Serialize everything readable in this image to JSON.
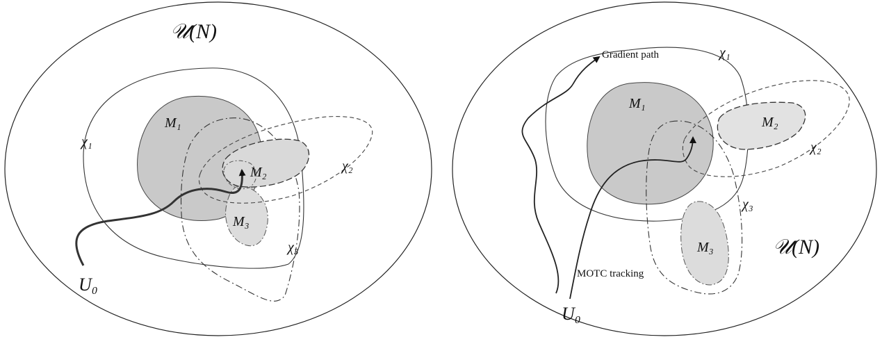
{
  "left_panel": {
    "space_label": "𝒰(N)",
    "chi1": "χ₁",
    "chi2": "χ₂",
    "chi3": "χ₃",
    "m1": "M₁",
    "m2": "M₂",
    "m3": "M₃",
    "start": "U₀"
  },
  "right_panel": {
    "space_label": "𝒰(N)",
    "chi1": "χ₁",
    "chi2": "χ₂",
    "chi3": "χ₃",
    "m1": "M₁",
    "m2": "M₂",
    "m3": "M₃",
    "start": "U₀",
    "gradient_path_label": "Gradient path",
    "motc_label": "MOTC tracking"
  },
  "colors": {
    "region_dark": "#c9c9c9",
    "region_light": "#e2e2e2",
    "stroke": "#222222"
  }
}
